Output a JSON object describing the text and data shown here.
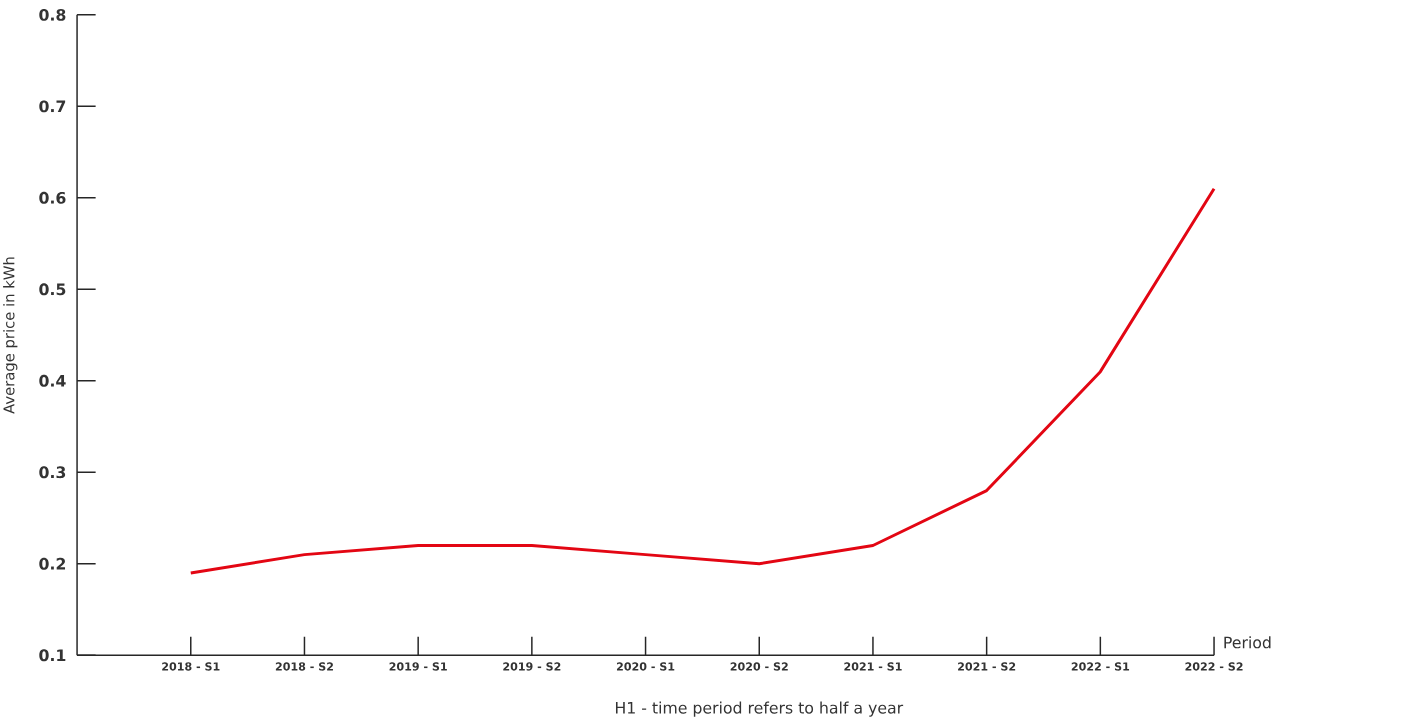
{
  "chart_data": {
    "type": "line",
    "xlabel": "Period",
    "ylabel": "Average price in kWh",
    "annotations": [
      "H1 - time period refers to half a year"
    ],
    "categories": [
      "2018 - S1",
      "2018 - S2",
      "2019 - S1",
      "2019 - S2",
      "2020 - S1",
      "2020 - S2",
      "2021 - S1",
      "2021 - S2",
      "2022 - S1",
      "2022 - S2"
    ],
    "series": [
      {
        "color": "#e30613",
        "values": [
          0.19,
          0.21,
          0.22,
          0.22,
          0.21,
          0.2,
          0.22,
          0.28,
          0.41,
          0.61
        ]
      }
    ],
    "ylim": [
      0.1,
      0.8
    ],
    "yticks": [
      0.1,
      0.2,
      0.3,
      0.4,
      0.5,
      0.6,
      0.7,
      0.8
    ],
    "grid": false,
    "line_style": "solid"
  }
}
